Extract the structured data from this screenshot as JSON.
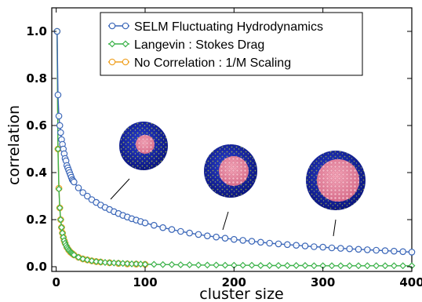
{
  "chart_data": {
    "type": "line",
    "xlabel": "cluster size",
    "ylabel": "correlation",
    "xlim": [
      -5,
      400
    ],
    "ylim": [
      -0.02,
      1.1
    ],
    "x_ticks": [
      0,
      100,
      200,
      300,
      400
    ],
    "y_ticks": [
      0.0,
      0.2,
      0.4,
      0.6,
      0.8,
      1.0
    ],
    "x_tick_labels": [
      "0",
      "100",
      "200",
      "300",
      "400"
    ],
    "y_tick_labels": [
      "0.0",
      "0.2",
      "0.4",
      "0.6",
      "0.8",
      "1.0"
    ],
    "legend_position": "top-center",
    "series": [
      {
        "name": "SELM Fluctuating Hydrodynamics",
        "color": "#3a66b8",
        "marker": "circle",
        "points": [
          [
            1,
            1.0
          ],
          [
            2,
            0.73
          ],
          [
            3,
            0.64
          ],
          [
            4,
            0.6
          ],
          [
            5,
            0.57
          ],
          [
            6,
            0.54
          ],
          [
            7,
            0.52
          ],
          [
            8,
            0.5
          ],
          [
            9,
            0.48
          ],
          [
            10,
            0.46
          ],
          [
            11,
            0.45
          ],
          [
            12,
            0.43
          ],
          [
            13,
            0.42
          ],
          [
            14,
            0.41
          ],
          [
            15,
            0.4
          ],
          [
            16,
            0.39
          ],
          [
            17,
            0.38
          ],
          [
            18,
            0.37
          ],
          [
            19,
            0.365
          ],
          [
            20,
            0.36
          ],
          [
            25,
            0.335
          ],
          [
            30,
            0.315
          ],
          [
            35,
            0.3
          ],
          [
            40,
            0.285
          ],
          [
            45,
            0.273
          ],
          [
            50,
            0.262
          ],
          [
            55,
            0.252
          ],
          [
            60,
            0.243
          ],
          [
            65,
            0.234
          ],
          [
            70,
            0.226
          ],
          [
            75,
            0.218
          ],
          [
            80,
            0.211
          ],
          [
            85,
            0.204
          ],
          [
            90,
            0.198
          ],
          [
            95,
            0.192
          ],
          [
            100,
            0.186
          ],
          [
            110,
            0.176
          ],
          [
            120,
            0.166
          ],
          [
            130,
            0.158
          ],
          [
            140,
            0.15
          ],
          [
            150,
            0.143
          ],
          [
            160,
            0.137
          ],
          [
            170,
            0.131
          ],
          [
            180,
            0.126
          ],
          [
            190,
            0.121
          ],
          [
            200,
            0.116
          ],
          [
            210,
            0.112
          ],
          [
            220,
            0.108
          ],
          [
            230,
            0.104
          ],
          [
            240,
            0.1
          ],
          [
            250,
            0.097
          ],
          [
            260,
            0.094
          ],
          [
            270,
            0.091
          ],
          [
            280,
            0.088
          ],
          [
            290,
            0.085
          ],
          [
            300,
            0.083
          ],
          [
            310,
            0.08
          ],
          [
            320,
            0.078
          ],
          [
            330,
            0.076
          ],
          [
            340,
            0.074
          ],
          [
            350,
            0.072
          ],
          [
            360,
            0.07
          ],
          [
            370,
            0.068
          ],
          [
            380,
            0.066
          ],
          [
            390,
            0.064
          ],
          [
            400,
            0.062
          ]
        ]
      },
      {
        "name": "Langevin : Stokes Drag",
        "color": "#3cb24a",
        "marker": "diamond",
        "points": [
          [
            1,
            1.0
          ],
          [
            2,
            0.5
          ],
          [
            3,
            0.33
          ],
          [
            4,
            0.25
          ],
          [
            5,
            0.2
          ],
          [
            6,
            0.167
          ],
          [
            7,
            0.143
          ],
          [
            8,
            0.125
          ],
          [
            9,
            0.111
          ],
          [
            10,
            0.1
          ],
          [
            11,
            0.091
          ],
          [
            12,
            0.083
          ],
          [
            13,
            0.077
          ],
          [
            14,
            0.071
          ],
          [
            15,
            0.067
          ],
          [
            16,
            0.062
          ],
          [
            17,
            0.059
          ],
          [
            18,
            0.056
          ],
          [
            19,
            0.053
          ],
          [
            20,
            0.05
          ],
          [
            25,
            0.04
          ],
          [
            30,
            0.033
          ],
          [
            35,
            0.029
          ],
          [
            40,
            0.025
          ],
          [
            45,
            0.022
          ],
          [
            50,
            0.02
          ],
          [
            55,
            0.018
          ],
          [
            60,
            0.017
          ],
          [
            65,
            0.016
          ],
          [
            70,
            0.015
          ],
          [
            75,
            0.014
          ],
          [
            80,
            0.013
          ],
          [
            85,
            0.012
          ],
          [
            90,
            0.012
          ],
          [
            95,
            0.011
          ],
          [
            100,
            0.01
          ],
          [
            110,
            0.01
          ],
          [
            120,
            0.009
          ],
          [
            130,
            0.009
          ],
          [
            140,
            0.008
          ],
          [
            150,
            0.008
          ],
          [
            160,
            0.007
          ],
          [
            170,
            0.007
          ],
          [
            180,
            0.007
          ],
          [
            190,
            0.006
          ],
          [
            200,
            0.006
          ],
          [
            210,
            0.006
          ],
          [
            220,
            0.006
          ],
          [
            230,
            0.005
          ],
          [
            240,
            0.005
          ],
          [
            250,
            0.005
          ],
          [
            260,
            0.005
          ],
          [
            270,
            0.005
          ],
          [
            280,
            0.005
          ],
          [
            290,
            0.004
          ],
          [
            300,
            0.004
          ],
          [
            310,
            0.004
          ],
          [
            320,
            0.004
          ],
          [
            330,
            0.004
          ],
          [
            340,
            0.004
          ],
          [
            350,
            0.004
          ],
          [
            360,
            0.004
          ],
          [
            370,
            0.004
          ],
          [
            380,
            0.004
          ],
          [
            390,
            0.004
          ],
          [
            400,
            0.004
          ]
        ]
      },
      {
        "name": "No Correlation : 1/M Scaling",
        "color": "#f0a020",
        "marker": "circle",
        "points": [
          [
            1,
            1.0
          ],
          [
            2,
            0.5
          ],
          [
            3,
            0.333
          ],
          [
            4,
            0.25
          ],
          [
            5,
            0.2
          ],
          [
            6,
            0.167
          ],
          [
            7,
            0.143
          ],
          [
            8,
            0.125
          ],
          [
            9,
            0.111
          ],
          [
            10,
            0.1
          ],
          [
            12,
            0.083
          ],
          [
            14,
            0.071
          ],
          [
            16,
            0.062
          ],
          [
            18,
            0.056
          ],
          [
            20,
            0.05
          ],
          [
            25,
            0.04
          ],
          [
            30,
            0.033
          ],
          [
            35,
            0.029
          ],
          [
            40,
            0.025
          ],
          [
            45,
            0.022
          ],
          [
            50,
            0.02
          ],
          [
            60,
            0.017
          ],
          [
            70,
            0.014
          ],
          [
            80,
            0.012
          ],
          [
            90,
            0.011
          ],
          [
            100,
            0.01
          ]
        ]
      }
    ],
    "insets": [
      {
        "name": "cluster-small",
        "description_visible": false
      },
      {
        "name": "cluster-medium",
        "description_visible": false
      },
      {
        "name": "cluster-large",
        "description_visible": false
      }
    ]
  }
}
